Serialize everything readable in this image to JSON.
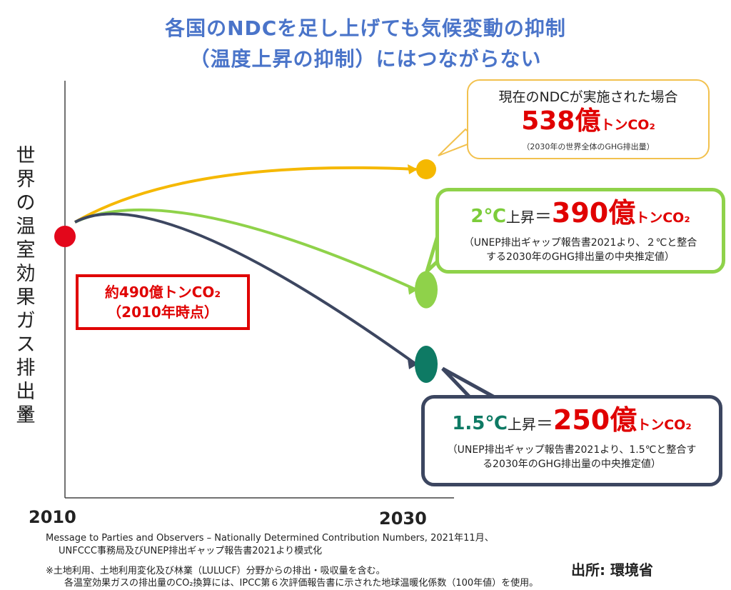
{
  "title": {
    "line1": "各国のNDCを足し上げても気候変動の抑制",
    "line2": "（温度上昇の抑制）にはつながらない"
  },
  "y_axis_label": "世界の温室効果ガス排出量",
  "y_axis_note": "※",
  "chart_data": {
    "type": "line",
    "x_ticks": [
      "2010",
      "2030"
    ],
    "ylabel": "世界の温室効果ガス排出量※",
    "unit": "億トンCO2",
    "start": {
      "year": 2010,
      "value": 490,
      "label_line1": "約490億トンCO₂",
      "label_line2": "（2010年時点）",
      "color": "#e3071b"
    },
    "series": [
      {
        "name": "現在のNDCが実施された場合",
        "start_value": 490,
        "end_year": 2030,
        "end_value": 538,
        "color": "#f5b800"
      },
      {
        "name": "2℃上昇",
        "start_value": 490,
        "end_year": 2030,
        "end_value": 390,
        "color": "#8fd24a"
      },
      {
        "name": "1.5℃上昇",
        "start_value": 490,
        "end_year": 2030,
        "end_value": 250,
        "color": "#3c4660"
      }
    ]
  },
  "callouts": {
    "ndc": {
      "line1": "現在のNDCが実施された場合",
      "value": "538億",
      "unit": "トンCO₂",
      "note": "（2030年の世界全体のGHG排出量）",
      "border_color": "#f2c14e"
    },
    "two_c": {
      "deg": "2℃",
      "up": "上昇",
      "eq": "＝",
      "value": "390億",
      "unit": "トンCO₂",
      "note_line1": "（UNEP排出ギャップ報告書2021より、２℃と整合",
      "note_line2": "する2030年のGHG排出量の中央推定値）",
      "deg_color": "#7ccc3a"
    },
    "one_five": {
      "deg": "1.5℃",
      "up": "上昇",
      "eq": "＝",
      "value": "250億",
      "unit": "トンCO₂",
      "note_line1": "（UNEP排出ギャップ報告書2021より、1.5℃と整合す",
      "note_line2": "る2030年のGHG排出量の中央推定値）",
      "deg_color": "#0e7a64"
    }
  },
  "footnotes": {
    "line1": "Message to Parties and Observers – Nationally Determined Contribution Numbers, 2021年11月、",
    "line2": "UNFCCC事務局及びUNEP排出ギャップ報告書2021より模式化",
    "line3": "※土地利用、土地利用変化及び林業（LULUCF）分野からの排出・吸収量を含む。",
    "line4": "各温室効果ガスの排出量のCO₂換算には、IPCC第６次評価報告書に示された地球温暖化係数（100年値）を使用。"
  },
  "source": "出所: 環境省"
}
